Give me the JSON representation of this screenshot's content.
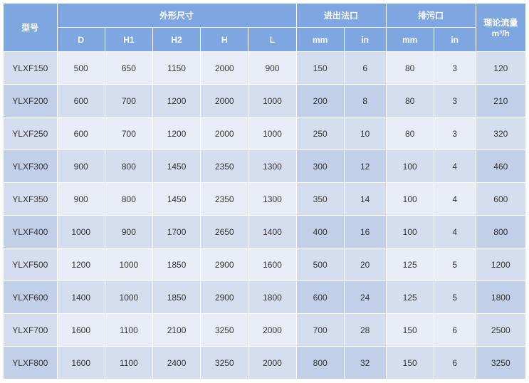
{
  "header": {
    "model": "型号",
    "dims": "外形尺寸",
    "io": "进出法口",
    "drain": "排污口",
    "flow": "理论流量 m³/h",
    "sub": {
      "D": "D",
      "H1": "H1",
      "H2": "H2",
      "H": "H",
      "L": "L",
      "io_mm": "mm",
      "io_in": "in",
      "dr_mm": "mm",
      "dr_in": "in"
    }
  },
  "rows": [
    {
      "model": "YLXF150",
      "D": "500",
      "H1": "650",
      "H2": "1150",
      "H": "2000",
      "L": "900",
      "io_mm": "150",
      "io_in": "6",
      "dr_mm": "80",
      "dr_in": "3",
      "flow": "120"
    },
    {
      "model": "YLXF200",
      "D": "600",
      "H1": "700",
      "H2": "1200",
      "H": "2000",
      "L": "1000",
      "io_mm": "200",
      "io_in": "8",
      "dr_mm": "80",
      "dr_in": "3",
      "flow": "210"
    },
    {
      "model": "YLXF250",
      "D": "600",
      "H1": "700",
      "H2": "1200",
      "H": "2000",
      "L": "1000",
      "io_mm": "250",
      "io_in": "10",
      "dr_mm": "80",
      "dr_in": "3",
      "flow": "320"
    },
    {
      "model": "YLXF300",
      "D": "900",
      "H1": "800",
      "H2": "1450",
      "H": "2350",
      "L": "1300",
      "io_mm": "300",
      "io_in": "12",
      "dr_mm": "100",
      "dr_in": "4",
      "flow": "460"
    },
    {
      "model": "YLXF350",
      "D": "900",
      "H1": "800",
      "H2": "1450",
      "H": "2350",
      "L": "1300",
      "io_mm": "350",
      "io_in": "14",
      "dr_mm": "100",
      "dr_in": "4",
      "flow": "600"
    },
    {
      "model": "YLXF400",
      "D": "1000",
      "H1": "900",
      "H2": "1700",
      "H": "2650",
      "L": "1400",
      "io_mm": "400",
      "io_in": "16",
      "dr_mm": "100",
      "dr_in": "4",
      "flow": "800"
    },
    {
      "model": "YLXF500",
      "D": "1200",
      "H1": "1000",
      "H2": "1850",
      "H": "2900",
      "L": "1600",
      "io_mm": "500",
      "io_in": "20",
      "dr_mm": "125",
      "dr_in": "5",
      "flow": "1200"
    },
    {
      "model": "YLXF600",
      "D": "1400",
      "H1": "1000",
      "H2": "1850",
      "H": "2900",
      "L": "1800",
      "io_mm": "600",
      "io_in": "24",
      "dr_mm": "125",
      "dr_in": "5",
      "flow": "1800"
    },
    {
      "model": "YLXF700",
      "D": "1600",
      "H1": "1100",
      "H2": "2100",
      "H": "3250",
      "L": "2000",
      "io_mm": "700",
      "io_in": "28",
      "dr_mm": "150",
      "dr_in": "6",
      "flow": "2500"
    },
    {
      "model": "YLXF800",
      "D": "1600",
      "H1": "1100",
      "H2": "2400",
      "H": "3250",
      "L": "2000",
      "io_mm": "800",
      "io_in": "32",
      "dr_mm": "150",
      "dr_in": "6",
      "flow": "3250"
    }
  ],
  "style": {
    "header_bg": "#7ea6e0",
    "header_fg": "#ffffff",
    "row_odd_bg": "#e8edf7",
    "row_even_bg": "#d5deef",
    "accent_odd_bg": "#d5deef",
    "accent_even_bg": "#c2cfe8",
    "border_color": "#ffffff",
    "font_size": 12
  }
}
